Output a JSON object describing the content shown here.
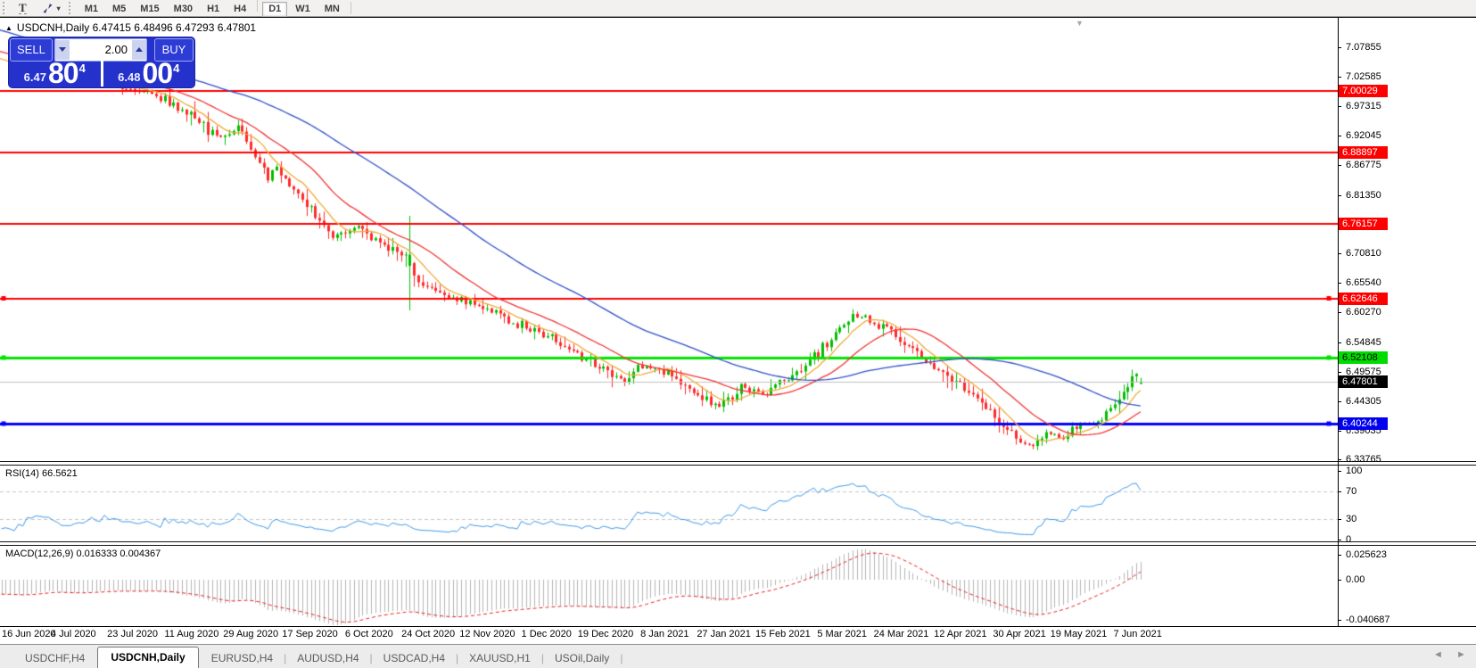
{
  "toolbar": {
    "text_tool_label": "T",
    "timeframes": [
      "M1",
      "M5",
      "M15",
      "M30",
      "H1",
      "H4",
      "D1",
      "W1",
      "MN"
    ],
    "active_timeframe": "D1"
  },
  "chart": {
    "title_line": "USDCNH,Daily 6.47415 6.48496 6.47293 6.47801"
  },
  "trade_panel": {
    "sell_label": "SELL",
    "buy_label": "BUY",
    "volume": "2.00",
    "sell_price_small": "6.47",
    "sell_price_big": "80",
    "sell_price_sup": "4",
    "buy_price_small": "6.48",
    "buy_price_big": "00",
    "buy_price_sup": "4"
  },
  "icons": {
    "chart_collapse": "▲",
    "dropdown_caret": "▾",
    "panel_expand": "▼",
    "tab_scroll_left": "◄",
    "tab_scroll_right": "►"
  },
  "price_axis": {
    "ticks": [
      "7.07855",
      "7.02585",
      "6.97315",
      "6.92045",
      "6.86775",
      "6.81350",
      "6.70810",
      "6.65540",
      "6.60270",
      "6.54845",
      "6.49575",
      "6.44305",
      "6.39035",
      "6.33765"
    ]
  },
  "levels": [
    {
      "value": 7.00029,
      "label": "7.00029",
      "color": "#FF0000",
      "badge_bg": "#FF0000",
      "badge_fg": "#FFFFFF",
      "line_width": 2,
      "handles": false
    },
    {
      "value": 6.88897,
      "label": "6.88897",
      "color": "#FF0000",
      "badge_bg": "#FF0000",
      "badge_fg": "#FFFFFF",
      "line_width": 2,
      "handles": false
    },
    {
      "value": 6.76157,
      "label": "6.76157",
      "color": "#FF0000",
      "badge_bg": "#FF0000",
      "badge_fg": "#FFFFFF",
      "line_width": 2,
      "handles": false
    },
    {
      "value": 6.62646,
      "label": "6.62646",
      "color": "#FF0000",
      "badge_bg": "#FF0000",
      "badge_fg": "#FFFFFF",
      "line_width": 2,
      "handles": true
    },
    {
      "value": 6.52108,
      "label": "6.52108",
      "color": "#00E400",
      "badge_bg": "#00DC00",
      "badge_fg": "#000000",
      "line_width": 3,
      "handles": true
    },
    {
      "value": 6.40244,
      "label": "6.40244",
      "color": "#0000FF",
      "badge_bg": "#0000EE",
      "badge_fg": "#FFFFFF",
      "line_width": 3,
      "handles": true
    },
    {
      "value": 6.47801,
      "label": "6.47801",
      "color": "#C0C0C0",
      "badge_bg": "#000000",
      "badge_fg": "#FFFFFF",
      "line_width": 1,
      "handles": false
    }
  ],
  "indicators": {
    "rsi": {
      "label": "RSI(14) 66.5621",
      "period": 14,
      "last_value": 66.5621,
      "ticks": [
        "100",
        "70",
        "30",
        "0"
      ],
      "dashed_levels": [
        70,
        30
      ],
      "line_color": "#3E97E8"
    },
    "macd": {
      "label": "MACD(12,26,9) 0.016333 0.004367",
      "fast": 12,
      "slow": 26,
      "signal_period": 9,
      "last_macd": 0.016333,
      "last_signal": 0.004367,
      "ticks": [
        "0.025623",
        "0.00",
        "-0.040687"
      ],
      "histogram_color": "#B4B4B4",
      "signal_color": "#E82020"
    }
  },
  "date_axis": [
    "16 Jun 2020",
    "4 Jul 2020",
    "23 Jul 2020",
    "11 Aug 2020",
    "29 Aug 2020",
    "17 Sep 2020",
    "6 Oct 2020",
    "24 Oct 2020",
    "12 Nov 2020",
    "1 Dec 2020",
    "19 Dec 2020",
    "8 Jan 2021",
    "27 Jan 2021",
    "15 Feb 2021",
    "5 Mar 2021",
    "24 Mar 2021",
    "12 Apr 2021",
    "30 Apr 2021",
    "19 May 2021",
    "7 Jun 2021"
  ],
  "tabs": {
    "items": [
      "USDCHF,H4",
      "USDCNH,Daily",
      "EURUSD,H4",
      "AUDUSD,H4",
      "USDCAD,H4",
      "XAUUSD,H1",
      "USOil,Daily"
    ],
    "active_index": 1
  },
  "chart_data": {
    "type": "candlestick",
    "symbol": "USDCNH",
    "timeframe": "Daily",
    "last_ohlc": {
      "open": 6.47415,
      "high": 6.48496,
      "low": 6.47293,
      "close": 6.47801
    },
    "num_candles": 263,
    "colors": {
      "up": "#00BE00",
      "down": "#FF2A2A"
    },
    "path_anchors": [
      [
        0,
        7.038
      ],
      [
        6,
        7.048
      ],
      [
        12,
        7.018
      ],
      [
        18,
        7.022
      ],
      [
        24,
        7.008
      ],
      [
        30,
        6.998
      ],
      [
        36,
        6.978
      ],
      [
        42,
        6.954
      ],
      [
        47,
        6.916
      ],
      [
        52,
        6.932
      ],
      [
        59,
        6.846
      ],
      [
        61,
        6.862
      ],
      [
        68,
        6.802
      ],
      [
        74,
        6.738
      ],
      [
        80,
        6.758
      ],
      [
        86,
        6.722
      ],
      [
        91,
        6.7
      ],
      [
        93,
        6.672
      ],
      [
        96,
        6.645
      ],
      [
        104,
        6.626
      ],
      [
        112,
        6.602
      ],
      [
        119,
        6.574
      ],
      [
        126,
        6.552
      ],
      [
        132,
        6.522
      ],
      [
        138,
        6.5
      ],
      [
        142,
        6.478
      ],
      [
        146,
        6.508
      ],
      [
        153,
        6.488
      ],
      [
        159,
        6.456
      ],
      [
        164,
        6.432
      ],
      [
        169,
        6.468
      ],
      [
        175,
        6.455
      ],
      [
        180,
        6.487
      ],
      [
        186,
        6.522
      ],
      [
        191,
        6.566
      ],
      [
        195,
        6.598
      ],
      [
        199,
        6.591
      ],
      [
        204,
        6.568
      ],
      [
        210,
        6.525
      ],
      [
        216,
        6.492
      ],
      [
        222,
        6.458
      ],
      [
        227,
        6.426
      ],
      [
        231,
        6.386
      ],
      [
        234,
        6.37
      ],
      [
        237,
        6.362
      ],
      [
        240,
        6.388
      ],
      [
        243,
        6.376
      ],
      [
        246,
        6.39
      ],
      [
        249,
        6.398
      ],
      [
        252,
        6.402
      ],
      [
        255,
        6.424
      ],
      [
        257,
        6.447
      ],
      [
        259,
        6.468
      ],
      [
        261,
        6.49
      ],
      [
        262,
        6.478
      ]
    ],
    "prehistory": {
      "bars": 60,
      "from": 7.175,
      "to": 7.045
    },
    "big_range_bar": {
      "index": 92,
      "open": 6.686,
      "high": 6.776,
      "low": 6.606,
      "close": 6.706
    },
    "moving_averages": [
      {
        "period": 8,
        "color": "#EFA93A"
      },
      {
        "period": 20,
        "color": "#F03535"
      },
      {
        "period": 55,
        "color": "#3050C8"
      }
    ],
    "horizontal_levels": [
      7.00029,
      6.88897,
      6.76157,
      6.62646,
      6.52108,
      6.40244
    ],
    "current_price": 6.47801,
    "rsi_range": [
      0,
      100
    ],
    "macd_axis": [
      0.025623,
      0.0,
      -0.040687
    ]
  }
}
